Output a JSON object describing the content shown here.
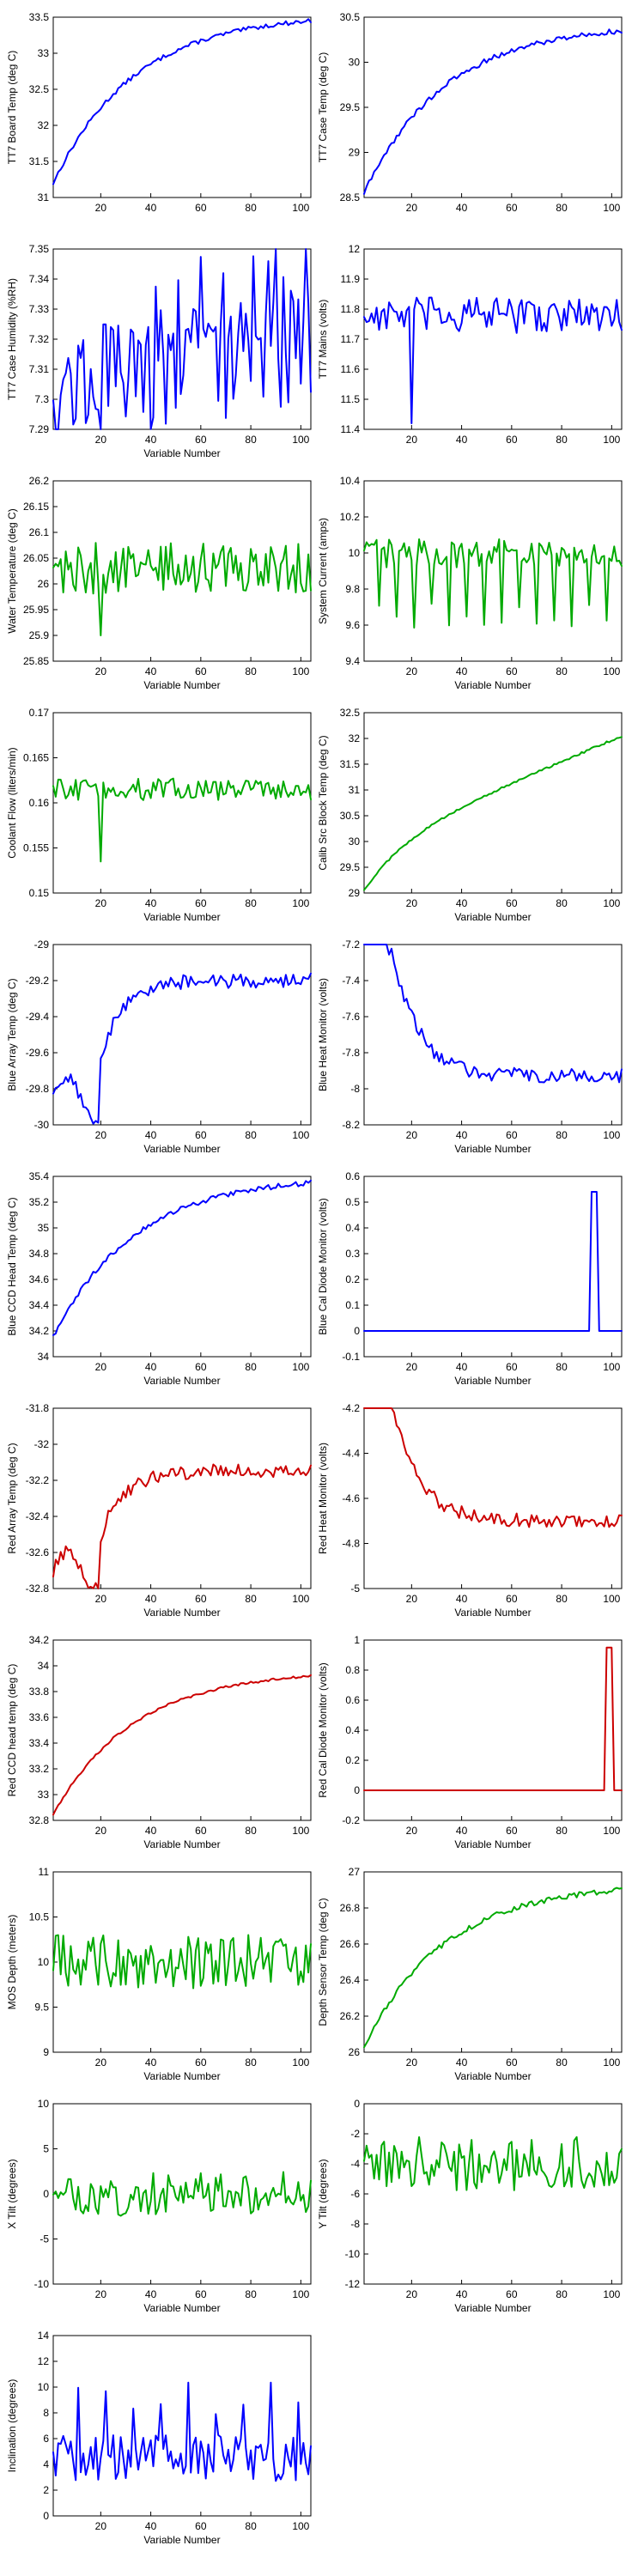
{
  "chart_data": [
    {
      "type": "line",
      "ylabel": "TT7 Board Temp (deg C)",
      "xlabel": "",
      "color": "#0000ff",
      "xlim": [
        1,
        104
      ],
      "ylim": [
        31,
        33.5
      ],
      "yticks": [
        "33.5",
        "33",
        "32.5",
        "32",
        "31.5",
        "31"
      ],
      "xticks": [
        "20",
        "40",
        "60",
        "80",
        "100"
      ],
      "shape": "riseLog",
      "from": 31.2,
      "to": 33.45,
      "noise": 0.03,
      "spike": null
    },
    {
      "type": "line",
      "ylabel": "TT7 Case Temp (deg C)",
      "xlabel": "",
      "color": "#0000ff",
      "xlim": [
        1,
        104
      ],
      "ylim": [
        28.5,
        30.5
      ],
      "yticks": [
        "30.5",
        "30",
        "29.5",
        "29",
        "28.5"
      ],
      "xticks": [
        "20",
        "40",
        "60",
        "80",
        "100"
      ],
      "shape": "riseLog",
      "from": 28.55,
      "to": 30.35,
      "noise": 0.03,
      "spike": null
    },
    {
      "type": "line",
      "ylabel": "TT7 Case Humidity (%RH)",
      "xlabel": "Variable Number",
      "color": "#0000ff",
      "xlim": [
        1,
        104
      ],
      "ylim": [
        7.29,
        7.35
      ],
      "yticks": [
        "7.35",
        "7.34",
        "7.33",
        "7.32",
        "7.31",
        "7.3",
        "7.29"
      ],
      "xticks": [
        "20",
        "40",
        "60",
        "80",
        "100"
      ],
      "shape": "humidity",
      "from": 7.291,
      "to": 7.345,
      "noise": 0.02,
      "spike": null
    },
    {
      "type": "line",
      "ylabel": "TT7 Mains (volts)",
      "xlabel": "",
      "color": "#0000ff",
      "xlim": [
        1,
        104
      ],
      "ylim": [
        11.4,
        12
      ],
      "yticks": [
        "12",
        "11.9",
        "11.8",
        "11.7",
        "11.6",
        "11.5",
        "11.4"
      ],
      "xticks": [
        "20",
        "40",
        "60",
        "80",
        "100"
      ],
      "shape": "flat",
      "from": 11.78,
      "to": 11.78,
      "noise": 0.06,
      "spike": {
        "x": 20,
        "y": 11.42
      }
    },
    {
      "type": "line",
      "ylabel": "Water Temperature (deg C)",
      "xlabel": "Variable Number",
      "color": "#00aa00",
      "xlim": [
        1,
        104
      ],
      "ylim": [
        25.85,
        26.2
      ],
      "yticks": [
        "26.2",
        "26.15",
        "26.1",
        "26.05",
        "26",
        "25.95",
        "25.9",
        "25.85"
      ],
      "xticks": [
        "20",
        "40",
        "60",
        "80",
        "100"
      ],
      "shape": "flat",
      "from": 26.03,
      "to": 26.03,
      "noise": 0.05,
      "spike": {
        "x": 20,
        "y": 25.9
      }
    },
    {
      "type": "line",
      "ylabel": "System Current (amps)",
      "xlabel": "Variable Number",
      "color": "#00aa00",
      "xlim": [
        1,
        104
      ],
      "ylim": [
        9.4,
        10.4
      ],
      "yticks": [
        "10.4",
        "10.2",
        "10",
        "9.8",
        "9.6",
        "9.4"
      ],
      "xticks": [
        "20",
        "40",
        "60",
        "80",
        "100"
      ],
      "shape": "dips",
      "from": 10,
      "to": 10,
      "noise": 0.08,
      "spike": null
    },
    {
      "type": "line",
      "ylabel": "Coolant Flow (liters/min)",
      "xlabel": "Variable Number",
      "color": "#00aa00",
      "xlim": [
        1,
        104
      ],
      "ylim": [
        0.15,
        0.17
      ],
      "yticks": [
        "0.17",
        "0.165",
        "0.16",
        "0.155",
        "0.15"
      ],
      "xticks": [
        "20",
        "40",
        "60",
        "80",
        "100"
      ],
      "shape": "flat",
      "from": 0.1615,
      "to": 0.1615,
      "noise": 0.0012,
      "spike": {
        "x": 20,
        "y": 0.1535
      }
    },
    {
      "type": "line",
      "ylabel": "Calib Src Block Temp (deg C)",
      "xlabel": "Variable Number",
      "color": "#00aa00",
      "xlim": [
        1,
        104
      ],
      "ylim": [
        29,
        32.5
      ],
      "yticks": [
        "32.5",
        "32",
        "31.5",
        "31",
        "30.5",
        "30",
        "29.5",
        "29"
      ],
      "xticks": [
        "20",
        "40",
        "60",
        "80",
        "100"
      ],
      "shape": "riseLin",
      "from": 29.05,
      "to": 32.05,
      "noise": 0.02,
      "spike": null
    },
    {
      "type": "line",
      "ylabel": "Blue Array Temp (deg C)",
      "xlabel": "Variable Number",
      "color": "#0000ff",
      "xlim": [
        1,
        104
      ],
      "ylim": [
        -30,
        -29
      ],
      "yticks": [
        "-29",
        "-29.2",
        "-29.4",
        "-29.6",
        "-29.8",
        "-30"
      ],
      "xticks": [
        "20",
        "40",
        "60",
        "80",
        "100"
      ],
      "shape": "array",
      "from": -29.85,
      "to": -29.2,
      "noise": 0.04,
      "spike": null
    },
    {
      "type": "line",
      "ylabel": "Blue Heat Monitor (volts)",
      "xlabel": "Variable Number",
      "color": "#0000ff",
      "xlim": [
        1,
        104
      ],
      "ylim": [
        -8.2,
        -7.2
      ],
      "yticks": [
        "-7.2",
        "-7.4",
        "-7.6",
        "-7.8",
        "-8",
        "-8.2"
      ],
      "xticks": [
        "20",
        "40",
        "60",
        "80",
        "100"
      ],
      "shape": "heat",
      "from": -7.3,
      "to": -7.93,
      "noise": 0.04,
      "spike": null
    },
    {
      "type": "line",
      "ylabel": "Blue CCD Head Temp (deg C)",
      "xlabel": "Variable Number",
      "color": "#0000ff",
      "xlim": [
        1,
        104
      ],
      "ylim": [
        34,
        35.4
      ],
      "yticks": [
        "35.4",
        "35.2",
        "35",
        "34.8",
        "34.6",
        "34.4",
        "34.2",
        "34"
      ],
      "xticks": [
        "20",
        "40",
        "60",
        "80",
        "100"
      ],
      "shape": "riseLog",
      "from": 34.15,
      "to": 35.35,
      "noise": 0.02,
      "spike": null
    },
    {
      "type": "line",
      "ylabel": "Blue Cal Diode Monitor (volts)",
      "xlabel": "Variable Number",
      "color": "#0000ff",
      "xlim": [
        1,
        104
      ],
      "ylim": [
        -0.1,
        0.6
      ],
      "yticks": [
        "0.6",
        "0.5",
        "0.4",
        "0.3",
        "0.2",
        "0.1",
        "0",
        "-0.1"
      ],
      "xticks": [
        "20",
        "40",
        "60",
        "80",
        "100"
      ],
      "shape": "pulse",
      "from": 0,
      "to": 0.54,
      "noise": 0.0,
      "spike": {
        "x": 92,
        "y": 0.54
      }
    },
    {
      "type": "line",
      "ylabel": "Red Array Temp (deg C)",
      "xlabel": "Variable Number",
      "color": "#cc0000",
      "xlim": [
        1,
        104
      ],
      "ylim": [
        -32.8,
        -31.8
      ],
      "yticks": [
        "-31.8",
        "-32",
        "-32.2",
        "-32.4",
        "-32.6",
        "-32.8"
      ],
      "xticks": [
        "20",
        "40",
        "60",
        "80",
        "100"
      ],
      "shape": "array",
      "from": -32.7,
      "to": -32.15,
      "noise": 0.04,
      "spike": null
    },
    {
      "type": "line",
      "ylabel": "Red Heat Monitor (volts)",
      "xlabel": "Variable Number",
      "color": "#cc0000",
      "xlim": [
        1,
        104
      ],
      "ylim": [
        -5,
        -4.2
      ],
      "yticks": [
        "-4.2",
        "-4.4",
        "-4.6",
        "-4.8",
        "-5"
      ],
      "xticks": [
        "20",
        "40",
        "60",
        "80",
        "100"
      ],
      "shape": "heat",
      "from": -4.22,
      "to": -4.7,
      "noise": 0.03,
      "spike": null
    },
    {
      "type": "line",
      "ylabel": "Red CCD head temp (deg C)",
      "xlabel": "Variable Number",
      "color": "#cc0000",
      "xlim": [
        1,
        104
      ],
      "ylim": [
        32.8,
        34.2
      ],
      "yticks": [
        "34.2",
        "34",
        "33.8",
        "33.6",
        "33.4",
        "33.2",
        "33",
        "32.8"
      ],
      "xticks": [
        "20",
        "40",
        "60",
        "80",
        "100"
      ],
      "shape": "riseLog",
      "from": 32.85,
      "to": 33.92,
      "noise": 0.01,
      "spike": null
    },
    {
      "type": "line",
      "ylabel": "Red Cal Diode Monitor (volts)",
      "xlabel": "Variable Number",
      "color": "#cc0000",
      "xlim": [
        1,
        104
      ],
      "ylim": [
        -0.2,
        1
      ],
      "yticks": [
        "1",
        "0.8",
        "0.6",
        "0.4",
        "0.2",
        "0",
        "-0.2"
      ],
      "xticks": [
        "20",
        "40",
        "60",
        "80",
        "100"
      ],
      "shape": "pulse",
      "from": 0,
      "to": 0.95,
      "noise": 0.0,
      "spike": {
        "x": 98,
        "y": 0.95
      }
    },
    {
      "type": "line",
      "ylabel": "MOS Depth (meters)",
      "xlabel": "Variable Number",
      "color": "#00aa00",
      "xlim": [
        1,
        104
      ],
      "ylim": [
        9,
        11
      ],
      "yticks": [
        "11",
        "10.5",
        "10",
        "9.5",
        "9"
      ],
      "xticks": [
        "20",
        "40",
        "60",
        "80",
        "100"
      ],
      "shape": "flat",
      "from": 10,
      "to": 10,
      "noise": 0.3,
      "spike": null
    },
    {
      "type": "line",
      "ylabel": "Depth Sensor Temp (deg C)",
      "xlabel": "Variable Number",
      "color": "#00aa00",
      "xlim": [
        1,
        104
      ],
      "ylim": [
        26,
        27
      ],
      "yticks": [
        "27",
        "26.8",
        "26.6",
        "26.4",
        "26.2",
        "26"
      ],
      "xticks": [
        "20",
        "40",
        "60",
        "80",
        "100"
      ],
      "shape": "riseLog",
      "from": 26.03,
      "to": 26.9,
      "noise": 0.015,
      "spike": null
    },
    {
      "type": "line",
      "ylabel": "X Tilt (degrees)",
      "xlabel": "Variable Number",
      "color": "#00aa00",
      "xlim": [
        1,
        104
      ],
      "ylim": [
        -10,
        10
      ],
      "yticks": [
        "10",
        "5",
        "0",
        "-5",
        "-10"
      ],
      "xticks": [
        "20",
        "40",
        "60",
        "80",
        "100"
      ],
      "shape": "flat",
      "from": 0,
      "to": 0,
      "noise": 2.5,
      "spike": null
    },
    {
      "type": "line",
      "ylabel": "Y Tilt (degrees)",
      "xlabel": "Variable Number",
      "color": "#00aa00",
      "xlim": [
        1,
        104
      ],
      "ylim": [
        -12,
        0
      ],
      "yticks": [
        "0",
        "-2",
        "-4",
        "-6",
        "-8",
        "-10",
        "-12"
      ],
      "xticks": [
        "20",
        "40",
        "60",
        "80",
        "100"
      ],
      "shape": "flat",
      "from": -4,
      "to": -4,
      "noise": 1.8,
      "spike": null
    },
    {
      "type": "line",
      "ylabel": "Inclination (degrees)",
      "xlabel": "Variable Number",
      "color": "#0000ff",
      "xlim": [
        1,
        104
      ],
      "ylim": [
        0,
        14
      ],
      "yticks": [
        "14",
        "12",
        "10",
        "8",
        "6",
        "4",
        "2",
        "0"
      ],
      "xticks": [
        "20",
        "40",
        "60",
        "80",
        "100"
      ],
      "shape": "incl",
      "from": 4.5,
      "to": 4.5,
      "noise": 1.8,
      "spike": null
    }
  ]
}
